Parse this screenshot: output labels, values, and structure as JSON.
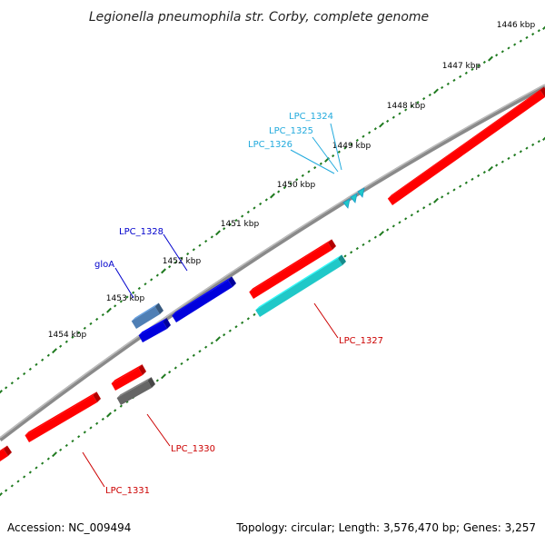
{
  "title": "Legionella pneumophila str. Corby, complete genome",
  "footer": {
    "accession": "Accession: NC_009494",
    "topology": "Topology: circular; Length: 3,576,470 bp; Genes: 3,257"
  },
  "ruler_labels": [
    "1446 kbp",
    "1447 kbp",
    "1448 kbp",
    "1449 kbp",
    "1450 kbp",
    "1451 kbp",
    "1452 kbp",
    "1453 kbp",
    "1454 kbp"
  ],
  "gene_labels": {
    "lpc_1324": "LPC_1324",
    "lpc_1325": "LPC_1325",
    "lpc_1326": "LPC_1326",
    "lpc_1328": "LPC_1328",
    "glo_a": "gloA",
    "lpc_1327": "LPC_1327",
    "lpc_1330": "LPC_1330",
    "lpc_1331": "LPC_1331"
  },
  "colors": {
    "backbone": "#8a8a8a",
    "tick": "#1f7a1f",
    "cds_red": "#ff0000",
    "cds_blue": "#0000dd",
    "cds_steel": "#4f7fb5",
    "cds_cyan": "#20c8c8",
    "cds_gray": "#666666",
    "label_cyan": "#22aadd",
    "label_blue": "#0000cc",
    "label_red": "#cc0000"
  }
}
